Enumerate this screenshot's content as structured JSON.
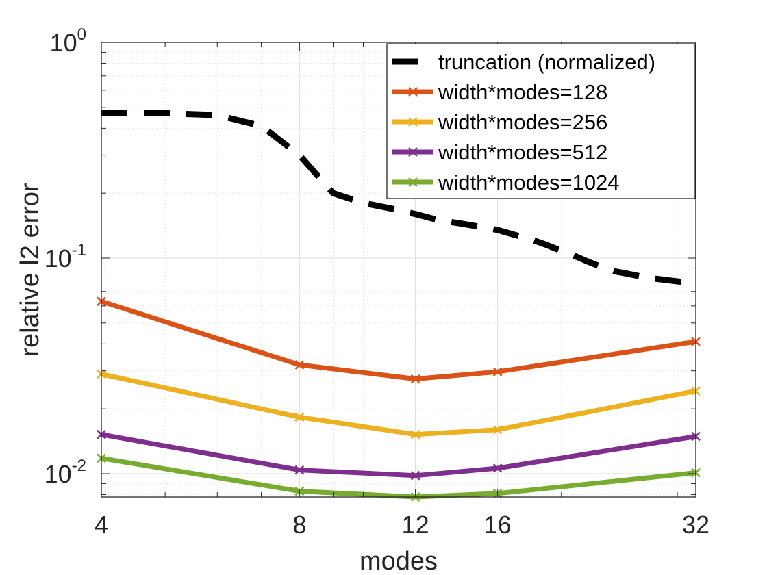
{
  "chart_data": {
    "type": "line",
    "title": "",
    "xlabel": "modes",
    "ylabel": "relative l2 error",
    "xscale": "log",
    "yscale": "log",
    "xlim": [
      4,
      32
    ],
    "ylim": [
      0.0078,
      1.0
    ],
    "grid": true,
    "legend_position": "top-right",
    "x_ticks": [
      {
        "value": 4,
        "label": "4"
      },
      {
        "value": 8,
        "label": "8"
      },
      {
        "value": 12,
        "label": "12"
      },
      {
        "value": 16,
        "label": "16"
      },
      {
        "value": 32,
        "label": "32"
      }
    ],
    "y_ticks": [
      {
        "value": 0.01,
        "base": "10",
        "exp": "-2"
      },
      {
        "value": 0.1,
        "base": "10",
        "exp": "-1"
      },
      {
        "value": 1,
        "base": "10",
        "exp": "0"
      }
    ],
    "series": [
      {
        "name": "truncation (normalized)",
        "color": "#000000",
        "style": "dashed",
        "marker": "none",
        "x": [
          4,
          5,
          6,
          7,
          8,
          9,
          10,
          11,
          12,
          13,
          14,
          15,
          16,
          17,
          18,
          19,
          20,
          21,
          22,
          23,
          24,
          25,
          26,
          27,
          28,
          29,
          30,
          31,
          32
        ],
        "values": [
          0.47,
          0.47,
          0.46,
          0.41,
          0.3,
          0.2,
          0.18,
          0.17,
          0.16,
          0.15,
          0.145,
          0.14,
          0.135,
          0.128,
          0.122,
          0.115,
          0.108,
          0.102,
          0.096,
          0.091,
          0.087,
          0.085,
          0.083,
          0.081,
          0.08,
          0.079,
          0.078,
          0.077,
          0.076
        ]
      },
      {
        "name": "width*modes=128",
        "color": "#d95319",
        "style": "solid",
        "marker": "x",
        "x": [
          4,
          8,
          12,
          16,
          32
        ],
        "values": [
          0.063,
          0.032,
          0.0275,
          0.0297,
          0.041
        ]
      },
      {
        "name": "width*modes=256",
        "color": "#edb120",
        "style": "solid",
        "marker": "x",
        "x": [
          4,
          8,
          12,
          16,
          32
        ],
        "values": [
          0.029,
          0.0183,
          0.0152,
          0.016,
          0.0242
        ]
      },
      {
        "name": "width*modes=512",
        "color": "#7e2f8e",
        "style": "solid",
        "marker": "x",
        "x": [
          4,
          8,
          12,
          16,
          32
        ],
        "values": [
          0.0152,
          0.0104,
          0.0098,
          0.0106,
          0.0149
        ]
      },
      {
        "name": "width*modes=1024",
        "color": "#77ac30",
        "style": "solid",
        "marker": "x",
        "x": [
          4,
          8,
          12,
          16,
          32
        ],
        "values": [
          0.0118,
          0.0083,
          0.0078,
          0.0081,
          0.0101
        ]
      }
    ]
  }
}
